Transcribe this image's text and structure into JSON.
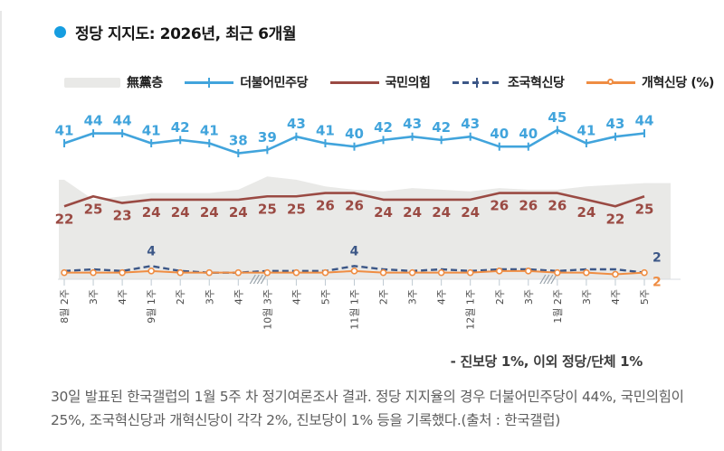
{
  "title": {
    "text": "정당 지지도: 2026년, 최근 6개월",
    "bullet_color": "#169de0"
  },
  "legend": {
    "items": [
      {
        "label": "無黨층",
        "type": "area",
        "color": "#e9e9e7"
      },
      {
        "label": "더불어민주당",
        "type": "line-tick",
        "color": "#41a4dc"
      },
      {
        "label": "국민의힘",
        "type": "line",
        "color": "#9a4a43"
      },
      {
        "label": "조국혁신당",
        "type": "dashed-tick",
        "color": "#3c5787"
      },
      {
        "label": "개혁신당 (%)",
        "type": "line-circle",
        "color": "#ef8d43"
      }
    ]
  },
  "chart_data": {
    "type": "line",
    "unit": "%",
    "ylim": [
      0,
      50
    ],
    "y_axis_visible": false,
    "grid": false,
    "legend_position": "top",
    "categories": [
      "8월 2주",
      "3주",
      "4주",
      "9월 1주",
      "2주",
      "3주",
      "4주",
      "10월 3주",
      "4주",
      "5주",
      "11월 1주",
      "2주",
      "3주",
      "4주",
      "12월 1주",
      "2주",
      "3주",
      "1월 2주",
      "3주",
      "4주",
      "5주"
    ],
    "breaks_after_index": [
      6,
      16
    ],
    "series": [
      {
        "name": "무당층(無黨층)",
        "type": "area",
        "color": "#e9e9e7",
        "estimated": true,
        "values": [
          30,
          24,
          25,
          26,
          26,
          26,
          27,
          31,
          30,
          28,
          27,
          26.5,
          27.5,
          27,
          26.5,
          27.5,
          27,
          27,
          28,
          28.5,
          29
        ]
      },
      {
        "name": "더불어민주당",
        "type": "line",
        "color": "#41a4dc",
        "width": 2.6,
        "marker": "tick",
        "label_mode": "all",
        "label_side": "above",
        "values": [
          41,
          44,
          44,
          41,
          42,
          41,
          38,
          39,
          43,
          41,
          40,
          42,
          43,
          42,
          43,
          40,
          40,
          45,
          41,
          43,
          44
        ]
      },
      {
        "name": "국민의힘",
        "type": "line",
        "color": "#9a4a43",
        "width": 2.6,
        "label_mode": "all",
        "label_side": "below",
        "values": [
          22,
          25,
          23,
          24,
          24,
          24,
          24,
          25,
          25,
          26,
          26,
          24,
          24,
          24,
          24,
          26,
          26,
          26,
          24,
          22,
          25
        ]
      },
      {
        "name": "조국혁신당",
        "type": "line",
        "color": "#3c5787",
        "width": 2.4,
        "dash": "7 4",
        "estimated": true,
        "values": [
          2.5,
          3,
          2.5,
          4,
          2.5,
          2,
          2,
          2.5,
          2.5,
          2.5,
          4,
          3,
          2.5,
          3,
          2.5,
          3,
          3,
          2.5,
          3,
          3,
          2
        ],
        "labels": [
          {
            "i": 3,
            "t": "4",
            "pos": "above"
          },
          {
            "i": 10,
            "t": "4",
            "pos": "above"
          },
          {
            "i": 20,
            "t": "2",
            "pos": "right-above"
          }
        ]
      },
      {
        "name": "개혁신당",
        "type": "line",
        "color": "#ef8d43",
        "width": 2,
        "marker": "circle",
        "estimated": true,
        "values": [
          2,
          2,
          2,
          2.5,
          2,
          2,
          2,
          2,
          2,
          2,
          2.5,
          2,
          2,
          2,
          2,
          2.5,
          2.5,
          2,
          2,
          1.5,
          2
        ],
        "labels": [
          {
            "i": 20,
            "t": "2",
            "pos": "right-below"
          }
        ]
      }
    ]
  },
  "annotation": "- 진보당 1%, 이외 정당/단체 1%",
  "caption": "30일 발표된 한국갤럽의 1월 5주 차 정기여론조사 결과. 정당 지지율의 경우 더불어민주당이 44%, 국민의힘이 25%, 조국혁신당과 개혁신당이 각각 2%, 진보당이 1% 등을 기록했다.(출처 : 한국갤럽)"
}
